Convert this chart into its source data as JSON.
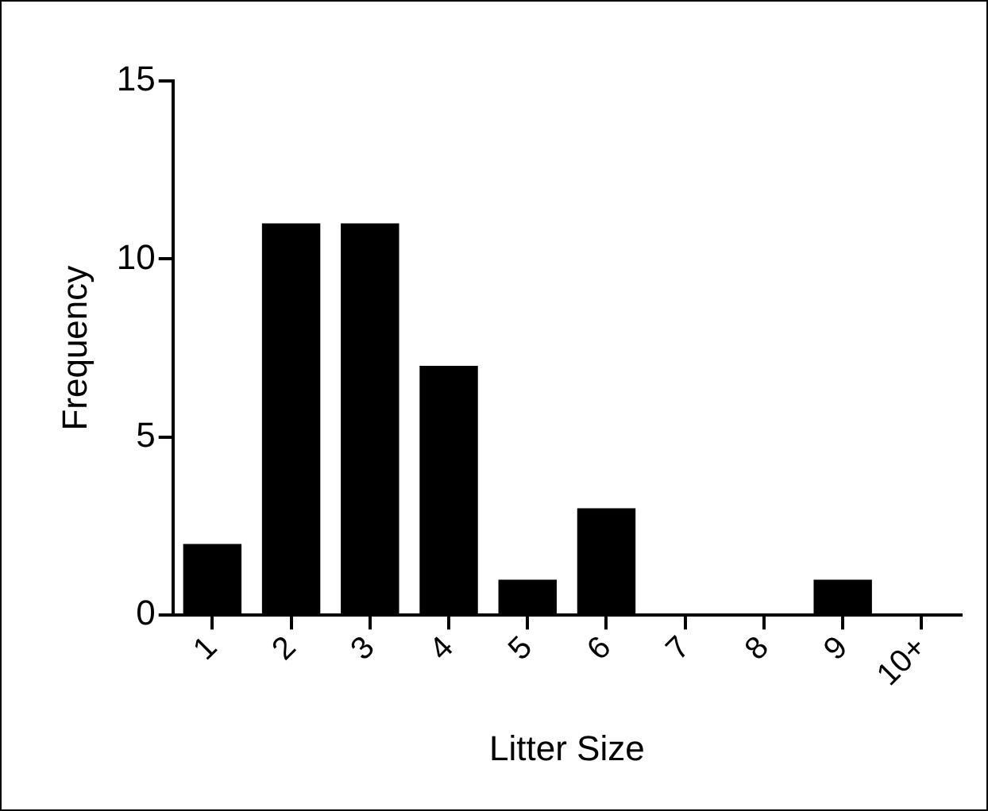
{
  "chart_data": {
    "type": "bar",
    "xlabel": "Litter Size",
    "ylabel": "Frequency",
    "categories": [
      "1",
      "2",
      "3",
      "4",
      "5",
      "6",
      "7",
      "8",
      "9",
      "10+"
    ],
    "values": [
      2,
      11,
      11,
      7,
      1,
      3,
      0,
      0,
      1,
      0
    ],
    "color": "#000000",
    "ylim": [
      0,
      15
    ],
    "yticks": [
      0,
      5,
      10,
      15
    ],
    "grid": false,
    "legend": false
  }
}
